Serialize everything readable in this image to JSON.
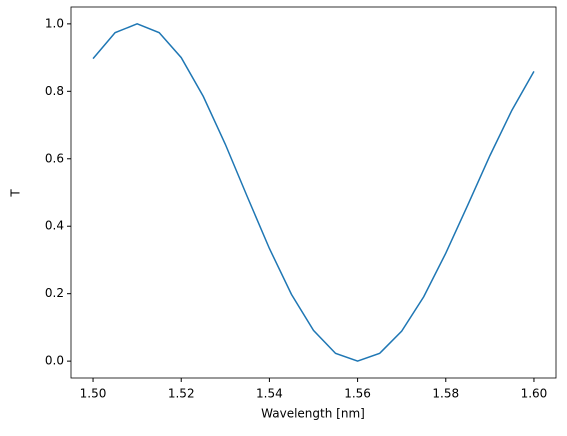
{
  "chart_data": {
    "type": "line",
    "x_label": "Wavelength [nm]",
    "y_label": "T",
    "x": [
      1.5,
      1.505,
      1.51,
      1.515,
      1.52,
      1.525,
      1.53,
      1.535,
      1.54,
      1.545,
      1.55,
      1.555,
      1.56,
      1.565,
      1.57,
      1.575,
      1.58,
      1.585,
      1.59,
      1.595,
      1.6
    ],
    "series": [
      {
        "color": "#1f77b4",
        "values": [
          0.897,
          0.974,
          1.0,
          0.974,
          0.9,
          0.785,
          0.643,
          0.487,
          0.334,
          0.198,
          0.091,
          0.023,
          0.0,
          0.023,
          0.089,
          0.191,
          0.32,
          0.463,
          0.609,
          0.744,
          0.859
        ]
      }
    ],
    "xlim": [
      1.495,
      1.605
    ],
    "xticks": [
      {
        "value": 1.5,
        "label": "1.50"
      },
      1.52,
      1.54,
      1.56,
      1.58,
      {
        "value": 1.6,
        "label": "1.60"
      }
    ],
    "ylim": [
      -0.05,
      1.05
    ],
    "yticks": [
      {
        "value": 0,
        "label": "0.0"
      },
      0.2,
      0.4,
      0.6,
      0.8,
      {
        "value": 1,
        "label": "1.0"
      }
    ],
    "grid": false
  }
}
